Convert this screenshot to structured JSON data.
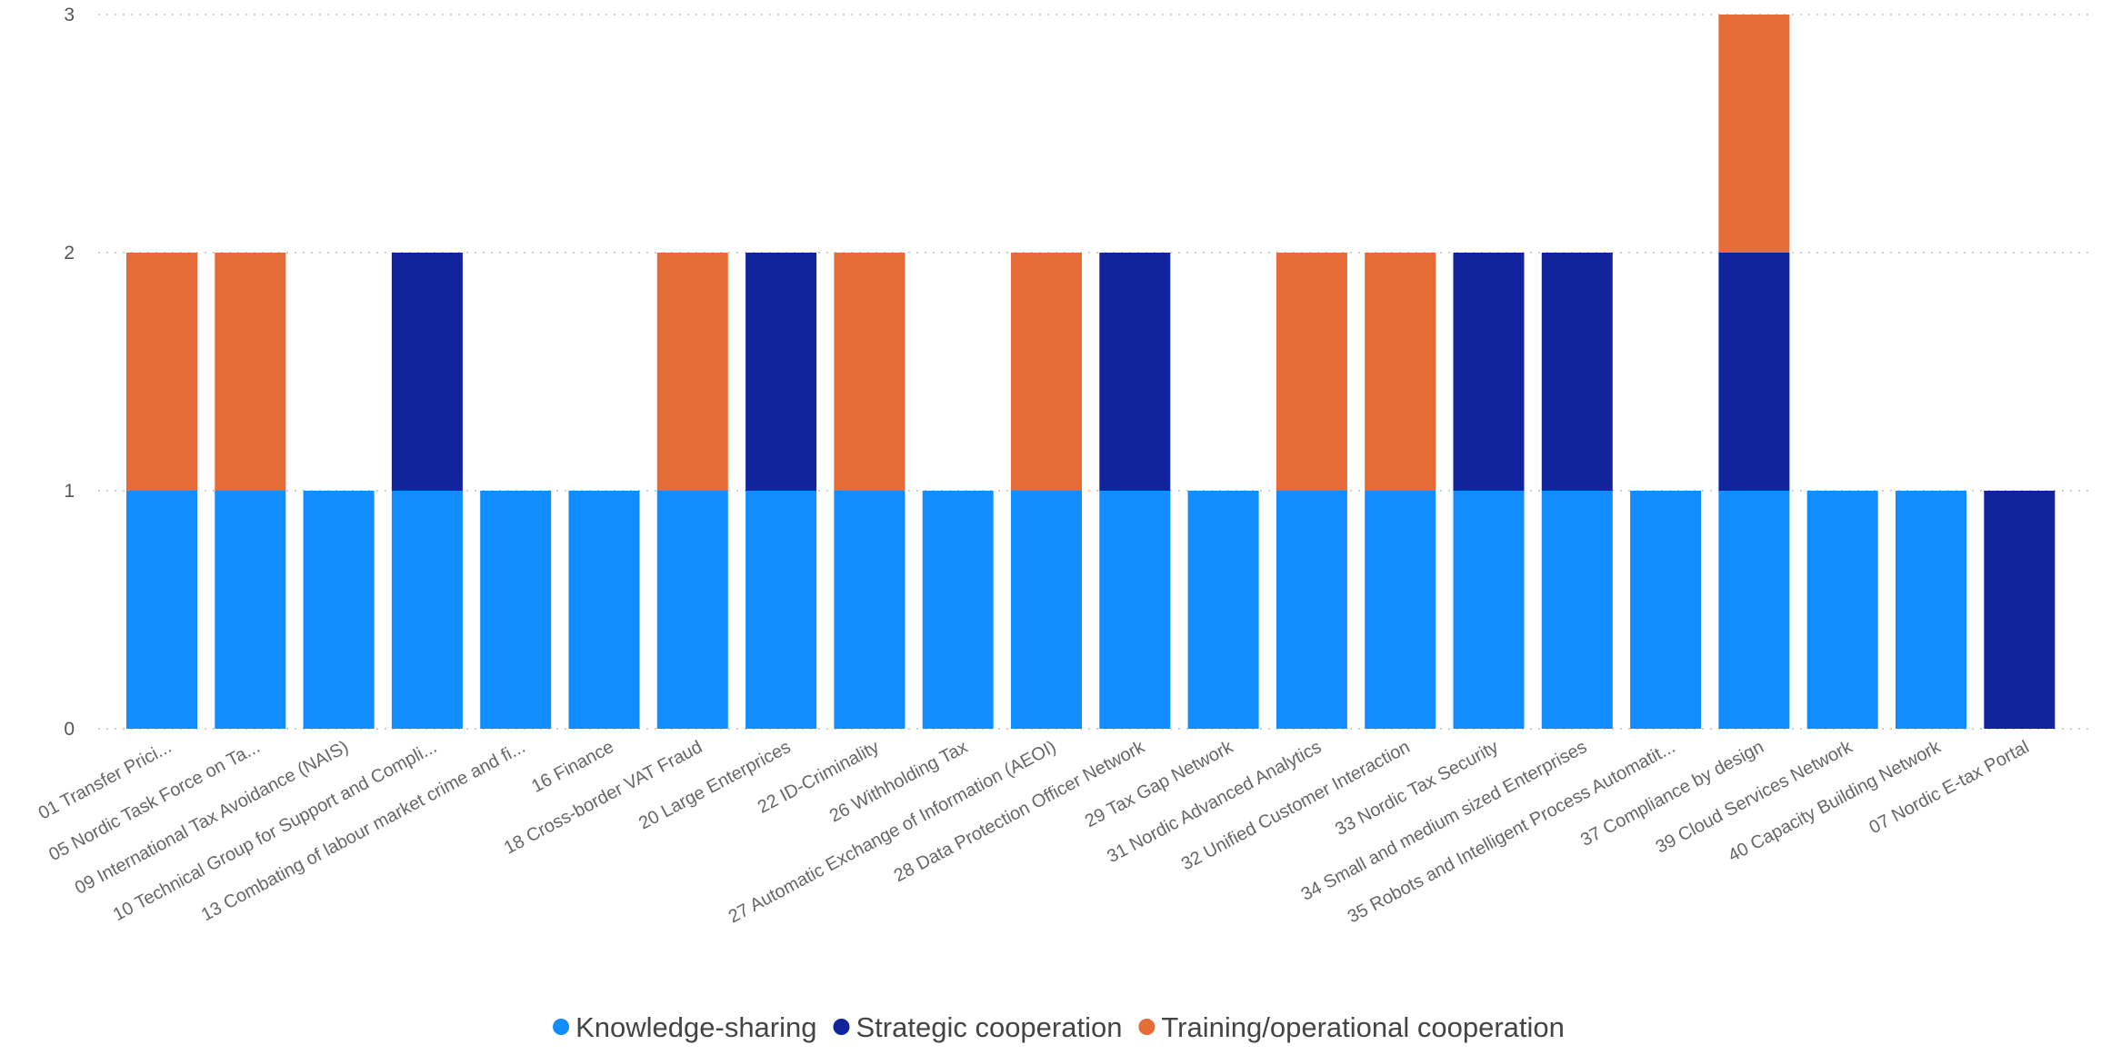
{
  "chart_data": {
    "type": "bar",
    "stacked": true,
    "categories": [
      "01 Transfer Prici...",
      "05 Nordic Task Force on Ta...",
      "09 International Tax Avoidance (NAIS)",
      "10 Technical Group for Support and Compli...",
      "13 Combating of labour market crime and fi...",
      "16 Finance",
      "18 Cross-border VAT Fraud",
      "20 Large Enterprices",
      "22 ID-Criminality",
      "26 Withholding Tax",
      "27 Automatic Exchange of Information (AEOI)",
      "28 Data Protection Officer Network",
      "29 Tax Gap Network",
      "31 Nordic Advanced Analytics",
      "32 Unified Customer Interaction",
      "33 Nordic Tax Security",
      "34 Small and medium sized Enterprises",
      "35 Robots and Intelligent Process Automatit...",
      "37 Compliance by design",
      "39 Cloud Services Network",
      "40 Capacity Building Network",
      "07 Nordic E-tax Portal"
    ],
    "series": [
      {
        "name": "Knowledge-sharing",
        "color": "#118dff",
        "values": [
          1,
          1,
          1,
          1,
          1,
          1,
          1,
          1,
          1,
          1,
          1,
          1,
          1,
          1,
          1,
          1,
          1,
          1,
          1,
          1,
          1,
          0
        ]
      },
      {
        "name": "Strategic cooperation",
        "color": "#12239e",
        "values": [
          0,
          0,
          0,
          1,
          0,
          0,
          0,
          1,
          0,
          0,
          0,
          1,
          0,
          0,
          0,
          1,
          1,
          0,
          1,
          0,
          0,
          1
        ]
      },
      {
        "name": "Training/operational cooperation",
        "color": "#e66c37",
        "values": [
          1,
          1,
          0,
          0,
          0,
          0,
          1,
          0,
          1,
          0,
          1,
          0,
          0,
          1,
          1,
          0,
          0,
          0,
          1,
          0,
          0,
          0
        ]
      }
    ],
    "yticks": [
      0,
      1,
      2,
      3
    ],
    "ylim": [
      0,
      3
    ],
    "grid": true,
    "legend_position": "bottom-center"
  }
}
